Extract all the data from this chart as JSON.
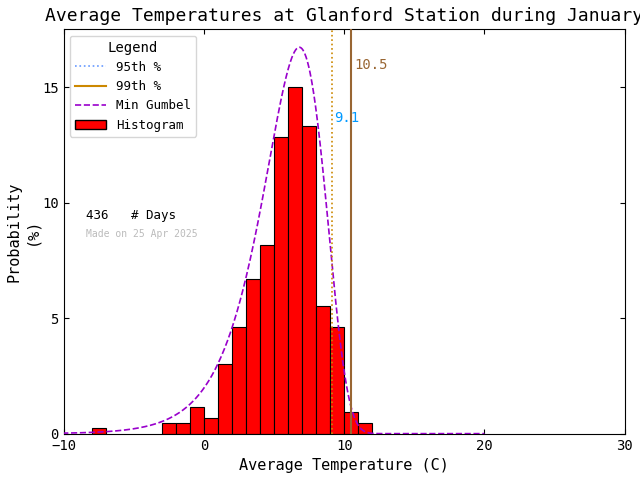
{
  "title": "Average Temperatures at Glanford Station during January",
  "xlabel": "Average Temperature (C)",
  "ylabel": "Probability\n(%)",
  "xlim": [
    -10,
    30
  ],
  "ylim": [
    0,
    17.5
  ],
  "xticks": [
    -10,
    0,
    10,
    20,
    30
  ],
  "yticks": [
    0,
    5,
    10,
    15
  ],
  "bin_edges": [
    -9,
    -8,
    -7,
    -6,
    -5,
    -4,
    -3,
    -2,
    -1,
    0,
    1,
    2,
    3,
    4,
    5,
    6,
    7,
    8,
    9,
    10,
    11,
    12,
    13
  ],
  "bin_heights": [
    0.0,
    0.23,
    0.0,
    0.0,
    0.0,
    0.0,
    0.46,
    0.46,
    1.15,
    0.69,
    3.0,
    4.61,
    6.68,
    8.18,
    12.84,
    15.0,
    13.3,
    5.53,
    4.61,
    0.92,
    0.46,
    0.0,
    0.0
  ],
  "gumbel_mu": 6.8,
  "gumbel_beta": 2.2,
  "percentile_95": 9.1,
  "percentile_99": 10.5,
  "n_days": 436,
  "bar_color": "#FF0000",
  "bar_edgecolor": "#000000",
  "gumbel_color": "#9900CC",
  "p95_color": "#CC8800",
  "p99_color": "#996633",
  "p95_line_style": "dotted",
  "p99_line_style": "solid",
  "annotation_color_95": "#0099FF",
  "annotation_color_99": "#996633",
  "legend_title": "Legend",
  "legend_95_label": "95th %",
  "legend_99_label": "99th %",
  "legend_gumbel_label": "Min Gumbel",
  "legend_hist_label": "Histogram",
  "legend_95_color": "#6699FF",
  "legend_99_color": "#CC8800",
  "watermark": "Made on 25 Apr 2025",
  "watermark_color": "#BBBBBB",
  "background_color": "#FFFFFF",
  "title_fontsize": 13,
  "axis_fontsize": 11,
  "tick_fontsize": 10
}
